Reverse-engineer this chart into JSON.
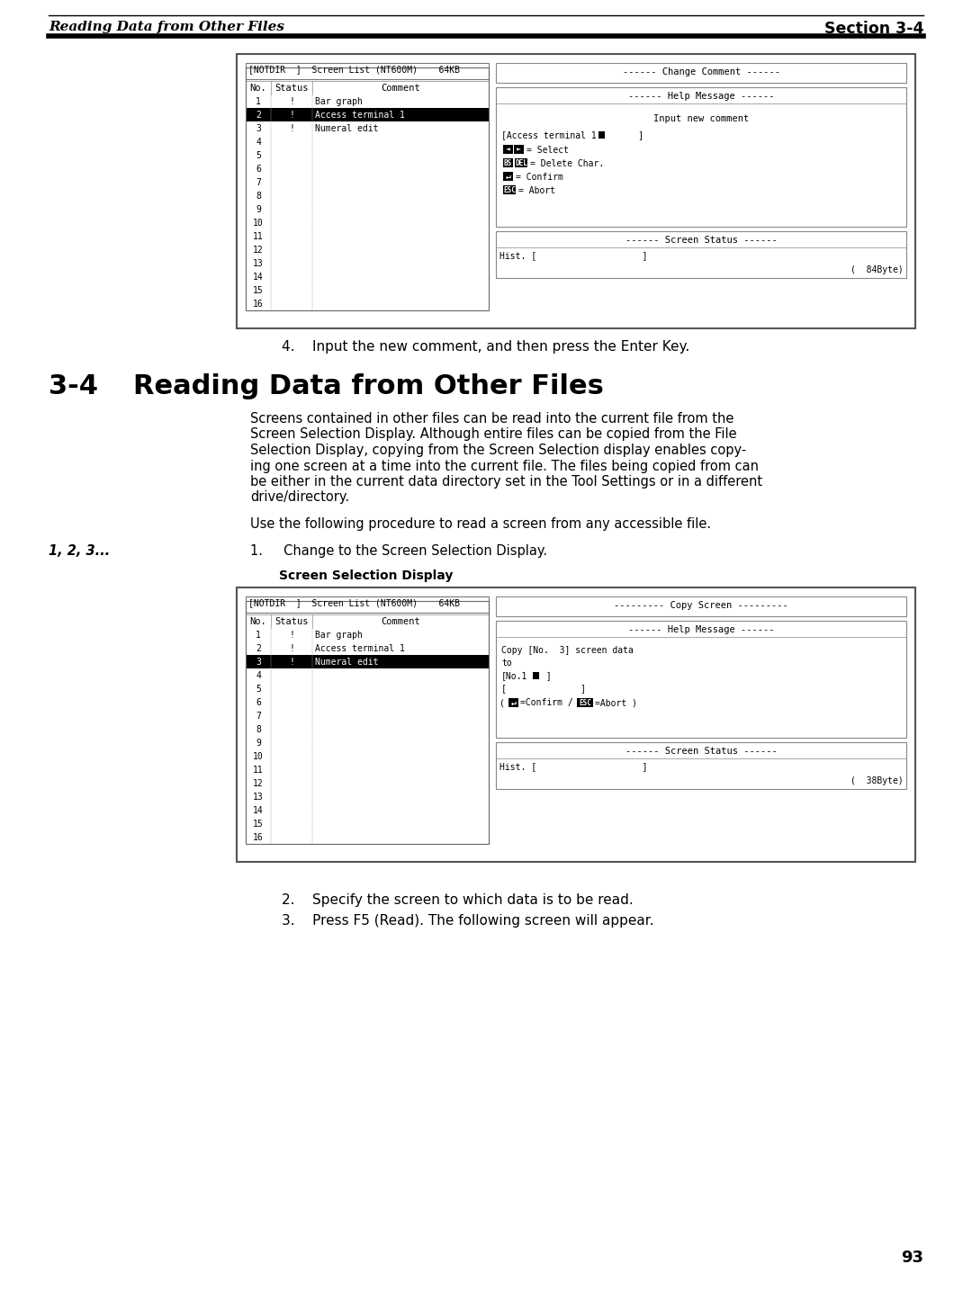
{
  "page_bg": "#ffffff",
  "header_left": "Reading Data from Other Files",
  "header_right": "Section 3-4",
  "step4_text": "4.    Input the new comment, and then press the Enter Key.",
  "section_num": "3-4",
  "section_title": "Reading Data from Other Files",
  "section_body": [
    "Screens contained in other files can be read into the current file from the",
    "Screen Selection Display. Although entire files can be copied from the File",
    "Selection Display, copying from the Screen Selection display enables copy-",
    "ing one screen at a time into the current file. The files being copied from can",
    "be either in the current data directory set in the Tool Settings or in a different",
    "drive/directory."
  ],
  "para2": "Use the following procedure to read a screen from any accessible file.",
  "step1_label": "1, 2, 3...",
  "step1_text": "1.     Change to the Screen Selection Display.",
  "screen_sel_label": "Screen Selection Display",
  "step2_text": "2.    Specify the screen to which data is to be read.",
  "step3_text": "3.    Press F5 (Read). The following screen will appear.",
  "page_num": "93",
  "screen1": {
    "title_bar": "[NOTDIR  ]  Screen List (NT600M)    64KB",
    "rows": [
      [
        "1",
        "!",
        "Bar graph",
        false
      ],
      [
        "2",
        "!",
        "Access terminal 1",
        true
      ],
      [
        "3",
        "!",
        "Numeral edit",
        false
      ],
      [
        "4",
        "",
        "",
        false
      ],
      [
        "5",
        "",
        "",
        false
      ],
      [
        "6",
        "",
        "",
        false
      ],
      [
        "7",
        "",
        "",
        false
      ],
      [
        "8",
        "",
        "",
        false
      ],
      [
        "9",
        "",
        "",
        false
      ],
      [
        "10",
        "",
        "",
        false
      ],
      [
        "11",
        "",
        "",
        false
      ],
      [
        "12",
        "",
        "",
        false
      ],
      [
        "13",
        "",
        "",
        false
      ],
      [
        "14",
        "",
        "",
        false
      ],
      [
        "15",
        "",
        "",
        false
      ],
      [
        "16",
        "",
        "",
        false
      ]
    ],
    "rp_top_title": "------ Change Comment ------",
    "rp_help_title": "------ Help Message ------",
    "rp_help_body_line1": "Input new comment",
    "rp_help_input": "[Access terminal 1",
    "rp_help_input2": "      ]",
    "rp_status_title": "------ Screen Status ------",
    "rp_hist": "Hist. [                    ]",
    "rp_byte": "(  84Byte)"
  },
  "screen2": {
    "title_bar": "[NOTDIR  ]  Screen List (NT600M)    64KB",
    "rows": [
      [
        "1",
        "!",
        "Bar graph",
        false
      ],
      [
        "2",
        "!",
        "Access terminal 1",
        false
      ],
      [
        "3",
        "!",
        "Numeral edit",
        true
      ],
      [
        "4",
        "",
        "",
        false
      ],
      [
        "5",
        "",
        "",
        false
      ],
      [
        "6",
        "",
        "",
        false
      ],
      [
        "7",
        "",
        "",
        false
      ],
      [
        "8",
        "",
        "",
        false
      ],
      [
        "9",
        "",
        "",
        false
      ],
      [
        "10",
        "",
        "",
        false
      ],
      [
        "11",
        "",
        "",
        false
      ],
      [
        "12",
        "",
        "",
        false
      ],
      [
        "13",
        "",
        "",
        false
      ],
      [
        "14",
        "",
        "",
        false
      ],
      [
        "15",
        "",
        "",
        false
      ],
      [
        "16",
        "",
        "",
        false
      ]
    ],
    "rp_top_title": "--------- Copy Screen ---------",
    "rp_help_title": "------ Help Message ------",
    "rp_copy_line1": "Copy [No.  3] screen data",
    "rp_copy_line2": "to",
    "rp_copy_no": "[No.1",
    "rp_copy_no2": " ]",
    "rp_copy_bracket": "[              ]",
    "rp_status_title": "------ Screen Status ------",
    "rp_hist": "Hist. [                    ]",
    "rp_byte": "(  38Byte)"
  }
}
